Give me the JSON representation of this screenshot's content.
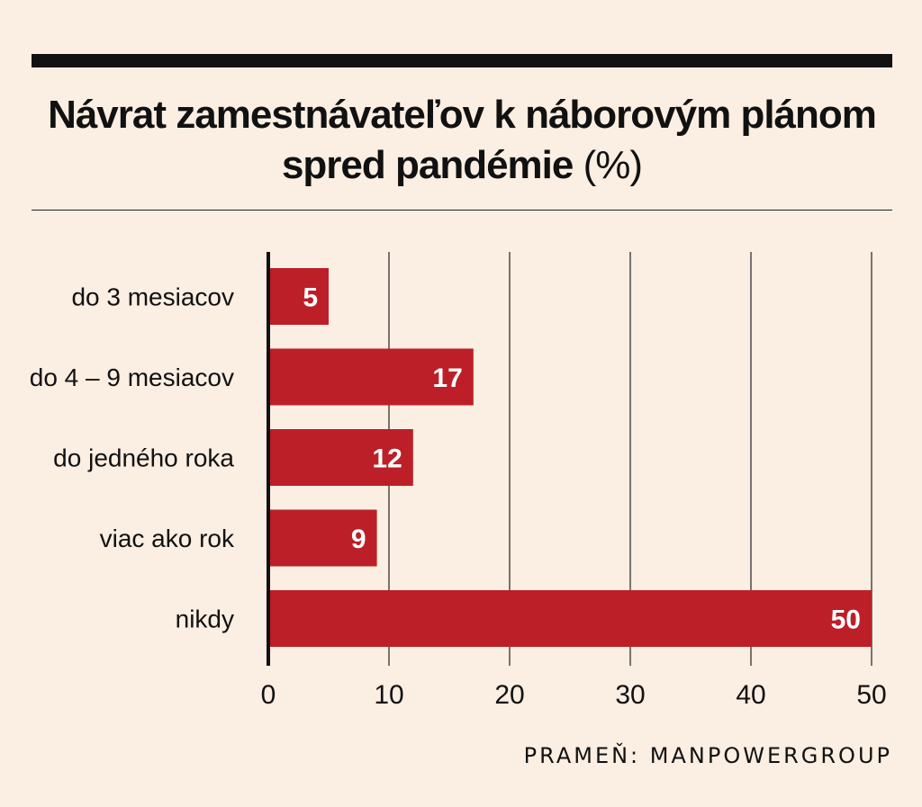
{
  "title_main": "Návrat zamestnávateľov k náborovým plánom spred pandémie",
  "title_unit": "(%)",
  "source": "PRAMEŇ: MANPOWERGROUP",
  "colors": {
    "bar": "#bc1f27",
    "background": "#fbeee2",
    "text": "#111111"
  },
  "chart_data": {
    "type": "bar",
    "orientation": "horizontal",
    "categories": [
      "do 3 mesiacov",
      "do 4 – 9 mesiacov",
      "do jedného roka",
      "viac ako rok",
      "nikdy"
    ],
    "values": [
      5,
      17,
      12,
      9,
      50
    ],
    "data_labels": [
      "5",
      "17",
      "12",
      "9",
      "50"
    ],
    "xlim": [
      0,
      50
    ],
    "xticks": [
      0,
      10,
      20,
      30,
      40,
      50
    ],
    "xtick_labels": [
      "0",
      "10",
      "20",
      "30",
      "40",
      "50"
    ],
    "grid": "vertical",
    "xlabel": "",
    "ylabel": ""
  }
}
